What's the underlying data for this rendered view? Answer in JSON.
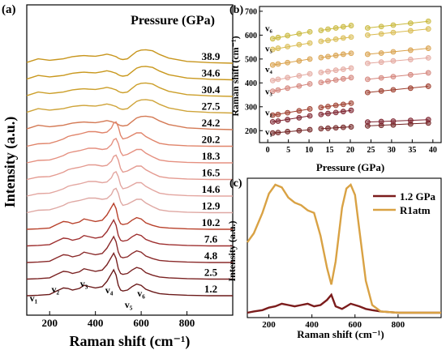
{
  "chart_data": [
    {
      "panel": "(a)",
      "type": "line",
      "xlabel": "Raman shift (cm⁻¹)",
      "ylabel": "Intensity (a.u.)",
      "legend_title": "Pressure (GPa)",
      "xlim": [
        100,
        1000
      ],
      "xticks": [
        200,
        400,
        600,
        800
      ],
      "x": [
        100,
        150,
        200,
        230,
        260,
        280,
        300,
        330,
        350,
        370,
        400,
        430,
        450,
        470,
        480,
        490,
        500,
        510,
        520,
        540,
        560,
        580,
        600,
        620,
        650,
        680,
        720,
        800,
        900,
        1000
      ],
      "baseline": [
        0,
        0,
        0,
        0,
        0,
        0,
        0,
        0,
        0,
        0,
        0,
        0,
        0,
        0,
        0,
        0,
        0,
        0,
        0,
        0,
        0,
        0,
        0,
        0,
        0,
        0,
        0,
        0,
        0,
        0
      ],
      "pressures": [
        "38.9",
        "34.6",
        "30.4",
        "27.5",
        "24.2",
        "20.2",
        "18.3",
        "16.5",
        "14.6",
        "12.9",
        "10.2",
        "7.6",
        "4.8",
        "2.5",
        "1.2"
      ],
      "peak_labels": [
        {
          "text": "v₁",
          "x": 130
        },
        {
          "text": "v₂",
          "x": 225
        },
        {
          "text": "v₃",
          "x": 350
        },
        {
          "text": "v₄",
          "x": 460
        },
        {
          "text": "v₅",
          "x": 545
        },
        {
          "text": "v₆",
          "x": 600
        }
      ],
      "colors": [
        "#c8961e",
        "#c9981e",
        "#cc9f2a",
        "#cfa43a",
        "#d47a55",
        "#e0846a",
        "#e59080",
        "#e49a90",
        "#e3a6a0",
        "#dfa8a3",
        "#b8412b",
        "#9e2f2f",
        "#8a2a2a",
        "#7a2222",
        "#6b1a1a"
      ]
    },
    {
      "panel": "(b)",
      "type": "scatter",
      "xlabel": "Pressure (GPa)",
      "ylabel": "Raman shift (cm⁻¹)",
      "xlim": [
        -2,
        42
      ],
      "ylim": [
        150,
        720
      ],
      "xticks": [
        0,
        5,
        10,
        15,
        20,
        25,
        30,
        35,
        40
      ],
      "yticks": [
        200,
        300,
        400,
        500,
        600,
        700
      ],
      "pressures": [
        1.2,
        2.5,
        4.8,
        7.6,
        10.2,
        12.9,
        14.6,
        16.5,
        18.3,
        20.2,
        24.2,
        27.5,
        30.4,
        34.6,
        38.9
      ],
      "mode_labels": [
        {
          "text": "v₆",
          "y": 630
        },
        {
          "text": "v₅",
          "y": 545
        },
        {
          "text": "v₄",
          "y": 458
        },
        {
          "text": "v₃",
          "y": 365
        },
        {
          "text": "v₂",
          "y": 278
        },
        {
          "text": "v₁",
          "y": 195
        }
      ],
      "series": [
        {
          "color": "#6f1f1f",
          "values": [
            190,
            192,
            196,
            200,
            204,
            208,
            210,
            212,
            214,
            216,
            220,
            222,
            224,
            228,
            232
          ]
        },
        {
          "color": "#7a1e2a",
          "values": [
            237,
            240,
            246,
            254,
            262,
            268,
            272,
            276,
            280,
            285,
            236,
            238,
            240,
            243,
            246
          ]
        },
        {
          "color": "#9c3b2a",
          "values": [
            265,
            268,
            275,
            283,
            291,
            297,
            301,
            306,
            310,
            315,
            360,
            366,
            371,
            378,
            386
          ]
        },
        {
          "color": "#d4837a",
          "values": [
            365,
            370,
            378,
            387,
            396,
            402,
            407,
            412,
            417,
            422,
            415,
            421,
            426,
            434,
            442
          ]
        },
        {
          "color": "#e4a89f",
          "values": [
            410,
            415,
            422,
            430,
            438,
            444,
            448,
            453,
            457,
            462,
            482,
            487,
            492,
            498,
            505
          ]
        },
        {
          "color": "#d9a14a",
          "values": [
            475,
            479,
            485,
            492,
            500,
            506,
            510,
            515,
            520,
            524,
            520,
            525,
            530,
            537,
            545
          ]
        },
        {
          "color": "#d9bb50",
          "values": [
            540,
            545,
            552,
            560,
            567,
            574,
            578,
            583,
            588,
            592,
            600,
            605,
            611,
            618,
            626
          ]
        },
        {
          "color": "#c9b83b",
          "values": [
            585,
            590,
            598,
            606,
            614,
            620,
            625,
            630,
            635,
            640,
            630,
            636,
            642,
            650,
            658
          ]
        }
      ]
    },
    {
      "panel": "(c)",
      "type": "line",
      "xlabel": "Raman shift (cm⁻¹)",
      "ylabel": "Intensity (a.u.)",
      "xlim": [
        100,
        1000
      ],
      "ylim": [
        0,
        1.0
      ],
      "xticks": [
        200,
        400,
        600,
        800
      ],
      "legend_position": "top-right",
      "x": [
        100,
        130,
        170,
        200,
        230,
        260,
        290,
        320,
        350,
        380,
        410,
        440,
        470,
        490,
        510,
        540,
        560,
        580,
        600,
        620,
        650,
        680,
        720,
        800,
        900,
        1000
      ],
      "series": [
        {
          "name": "1.2 GPa",
          "color": "#7b1c1c",
          "values": [
            0.0,
            0.01,
            0.02,
            0.04,
            0.05,
            0.07,
            0.06,
            0.05,
            0.06,
            0.07,
            0.05,
            0.06,
            0.1,
            0.14,
            0.05,
            0.03,
            0.05,
            0.07,
            0.06,
            0.05,
            0.03,
            0.02,
            0.01,
            0.0,
            0.0,
            0.0
          ]
        },
        {
          "name": "R1atm",
          "color": "#d9a244",
          "values": [
            0.55,
            0.62,
            0.78,
            0.93,
            1.0,
            0.98,
            0.9,
            0.86,
            0.84,
            0.8,
            0.78,
            0.6,
            0.35,
            0.22,
            0.4,
            0.82,
            0.97,
            1.0,
            0.92,
            0.65,
            0.25,
            0.06,
            0.01,
            0.0,
            0.0,
            0.0
          ]
        }
      ]
    }
  ]
}
